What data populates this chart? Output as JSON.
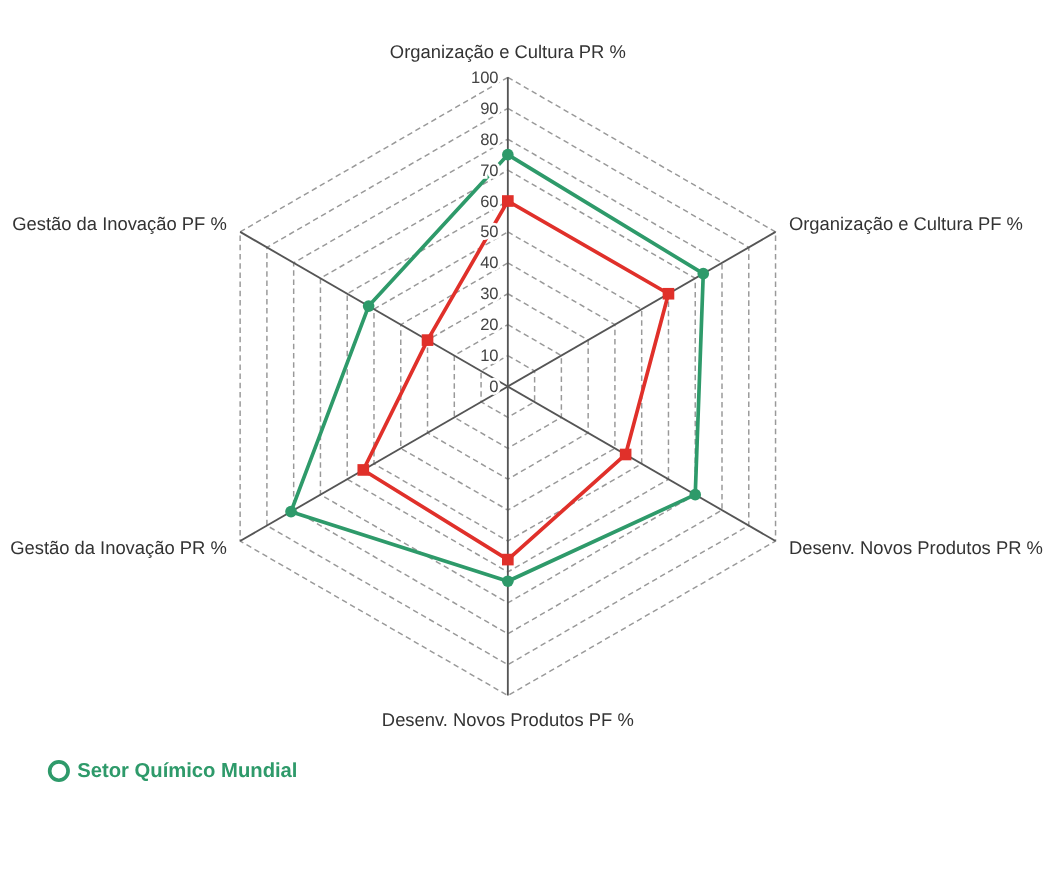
{
  "chart_data": {
    "type": "radar",
    "categories": [
      "Organização e Cultura  PR %",
      "Organização e Cultura  PF %",
      "Desenv. Novos Produtos  PR %",
      "Desenv. Novos Produtos PF %",
      "Gestão da Inovação PR %",
      "Gestão da Inovação PF %"
    ],
    "series": [
      {
        "name": "Setor  Químico Mundial",
        "color": "#2e9a6a",
        "marker": "circle",
        "values": [
          75,
          73,
          70,
          63,
          81,
          52
        ]
      },
      {
        "color": "#e0302a",
        "marker": "square",
        "values": [
          60,
          60,
          44,
          56,
          54,
          30
        ]
      }
    ],
    "ylim": [
      0,
      100
    ],
    "yticks": [
      0,
      10,
      20,
      30,
      40,
      50,
      60,
      70,
      80,
      90,
      100
    ],
    "grid": true,
    "legend": "bottom"
  }
}
